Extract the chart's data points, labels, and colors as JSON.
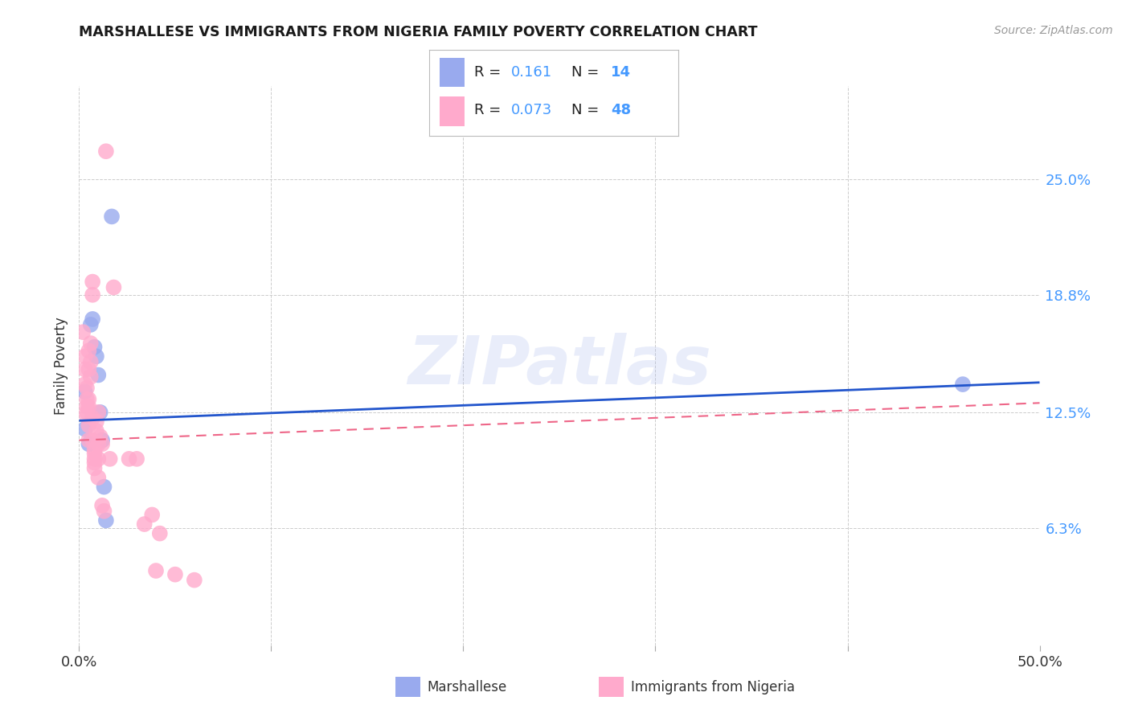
{
  "title": "MARSHALLESE VS IMMIGRANTS FROM NIGERIA FAMILY POVERTY CORRELATION CHART",
  "source": "Source: ZipAtlas.com",
  "ylabel": "Family Poverty",
  "ytick_labels": [
    "25.0%",
    "18.8%",
    "12.5%",
    "6.3%"
  ],
  "ytick_values": [
    0.25,
    0.188,
    0.125,
    0.063
  ],
  "xlim": [
    0.0,
    0.5
  ],
  "ylim": [
    0.0,
    0.3
  ],
  "legend_blue_r": "0.161",
  "legend_blue_n": "14",
  "legend_pink_r": "0.073",
  "legend_pink_n": "48",
  "legend_label_blue": "Marshallese",
  "legend_label_pink": "Immigrants from Nigeria",
  "blue_color": "#99AAEE",
  "pink_color": "#FFAACC",
  "blue_scatter": [
    [
      0.003,
      0.136
    ],
    [
      0.003,
      0.116
    ],
    [
      0.005,
      0.108
    ],
    [
      0.006,
      0.172
    ],
    [
      0.007,
      0.175
    ],
    [
      0.008,
      0.16
    ],
    [
      0.009,
      0.155
    ],
    [
      0.01,
      0.145
    ],
    [
      0.011,
      0.125
    ],
    [
      0.012,
      0.11
    ],
    [
      0.013,
      0.085
    ],
    [
      0.014,
      0.067
    ],
    [
      0.017,
      0.23
    ],
    [
      0.46,
      0.14
    ]
  ],
  "pink_scatter": [
    [
      0.002,
      0.168
    ],
    [
      0.003,
      0.155
    ],
    [
      0.003,
      0.148
    ],
    [
      0.003,
      0.14
    ],
    [
      0.004,
      0.138
    ],
    [
      0.004,
      0.132
    ],
    [
      0.004,
      0.128
    ],
    [
      0.004,
      0.125
    ],
    [
      0.004,
      0.123
    ],
    [
      0.005,
      0.158
    ],
    [
      0.005,
      0.148
    ],
    [
      0.005,
      0.132
    ],
    [
      0.005,
      0.128
    ],
    [
      0.005,
      0.118
    ],
    [
      0.005,
      0.11
    ],
    [
      0.006,
      0.162
    ],
    [
      0.006,
      0.152
    ],
    [
      0.006,
      0.144
    ],
    [
      0.007,
      0.195
    ],
    [
      0.007,
      0.188
    ],
    [
      0.007,
      0.122
    ],
    [
      0.007,
      0.11
    ],
    [
      0.008,
      0.105
    ],
    [
      0.008,
      0.103
    ],
    [
      0.008,
      0.1
    ],
    [
      0.008,
      0.098
    ],
    [
      0.008,
      0.095
    ],
    [
      0.009,
      0.12
    ],
    [
      0.009,
      0.115
    ],
    [
      0.01,
      0.125
    ],
    [
      0.01,
      0.108
    ],
    [
      0.01,
      0.1
    ],
    [
      0.01,
      0.09
    ],
    [
      0.011,
      0.112
    ],
    [
      0.012,
      0.108
    ],
    [
      0.012,
      0.075
    ],
    [
      0.013,
      0.072
    ],
    [
      0.014,
      0.265
    ],
    [
      0.016,
      0.1
    ],
    [
      0.018,
      0.192
    ],
    [
      0.026,
      0.1
    ],
    [
      0.03,
      0.1
    ],
    [
      0.034,
      0.065
    ],
    [
      0.038,
      0.07
    ],
    [
      0.04,
      0.04
    ],
    [
      0.042,
      0.06
    ],
    [
      0.05,
      0.038
    ],
    [
      0.06,
      0.035
    ]
  ],
  "blue_line_x": [
    0.0,
    0.5
  ],
  "blue_line_y_start": 0.1205,
  "blue_line_y_end": 0.141,
  "pink_line_x": [
    0.0,
    0.5
  ],
  "pink_line_y_start": 0.11,
  "pink_line_y_end": 0.13,
  "watermark": "ZIPatlas",
  "background_color": "#FFFFFF",
  "grid_color": "#CCCCCC"
}
